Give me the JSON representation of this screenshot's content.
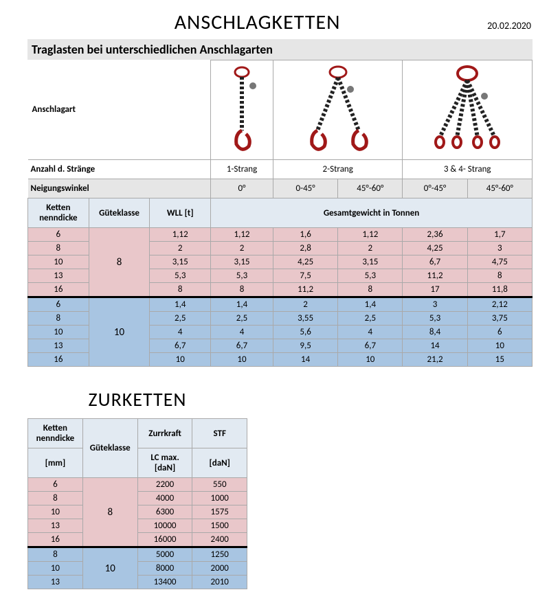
{
  "header": {
    "title": "ANSCHLAGKETTEN",
    "date": "20.02.2020",
    "banner": "Traglasten bei unterschiedlichen Anschlagarten"
  },
  "labels": {
    "anschlagart": "Anschlagart",
    "anzahl": "Anzahl d. Stränge",
    "neigung": "Neigungswinkel",
    "ketten": "Ketten nenndicke",
    "gk": "Güteklasse",
    "wll": "WLL [t]",
    "gesamt": "Gesamtgewicht in Tonnen",
    "strang1": "1-Strang",
    "strang2": "2-Strang",
    "strang34": "3 & 4- Strang",
    "a0": "0°",
    "a045": "0-45°",
    "a4560": "45°-60°",
    "a0d45": "0°-45°"
  },
  "table1": {
    "colors": {
      "pink": "#e9c7ca",
      "blue": "#a8c5e2",
      "header": "#e2eaf2",
      "grey": "#e6e6e6",
      "border": "#a9a9a9"
    },
    "group8": {
      "gk": "8",
      "rows": [
        {
          "d": "6",
          "v": [
            "1,12",
            "1,12",
            "1,6",
            "1,12",
            "2,36",
            "1,7"
          ]
        },
        {
          "d": "8",
          "v": [
            "2",
            "2",
            "2,8",
            "2",
            "4,25",
            "3"
          ]
        },
        {
          "d": "10",
          "v": [
            "3,15",
            "3,15",
            "4,25",
            "3,15",
            "6,7",
            "4,75"
          ]
        },
        {
          "d": "13",
          "v": [
            "5,3",
            "5,3",
            "7,5",
            "5,3",
            "11,2",
            "8"
          ]
        },
        {
          "d": "16",
          "v": [
            "8",
            "8",
            "11,2",
            "8",
            "17",
            "11,8"
          ]
        }
      ]
    },
    "group10": {
      "gk": "10",
      "rows": [
        {
          "d": "6",
          "v": [
            "1,4",
            "1,4",
            "2",
            "1,4",
            "3",
            "2,12"
          ]
        },
        {
          "d": "8",
          "v": [
            "2,5",
            "2,5",
            "3,55",
            "2,5",
            "5,3",
            "3,75"
          ]
        },
        {
          "d": "10",
          "v": [
            "4",
            "4",
            "5,6",
            "4",
            "8,4",
            "6"
          ]
        },
        {
          "d": "13",
          "v": [
            "6,7",
            "6,7",
            "9,5",
            "6,7",
            "14",
            "10"
          ]
        },
        {
          "d": "16",
          "v": [
            "10",
            "10",
            "14",
            "10",
            "21,2",
            "15"
          ]
        }
      ]
    }
  },
  "section2": {
    "title": "ZURKETTEN",
    "labels": {
      "ketten": "Ketten nenndicke",
      "mm": "[mm]",
      "gk": "Güteklasse",
      "zurr": "Zurrkraft",
      "lc": "LC max. [daN]",
      "stf": "STF",
      "dan": "[daN]"
    },
    "group8": {
      "gk": "8",
      "rows": [
        {
          "d": "6",
          "lc": "2200",
          "stf": "550"
        },
        {
          "d": "8",
          "lc": "4000",
          "stf": "1000"
        },
        {
          "d": "10",
          "lc": "6300",
          "stf": "1575"
        },
        {
          "d": "13",
          "lc": "10000",
          "stf": "1500"
        },
        {
          "d": "16",
          "lc": "16000",
          "stf": "2400"
        }
      ]
    },
    "group10": {
      "gk": "10",
      "rows": [
        {
          "d": "8",
          "lc": "5000",
          "stf": "1250"
        },
        {
          "d": "10",
          "lc": "8000",
          "stf": "2000"
        },
        {
          "d": "13",
          "lc": "13400",
          "stf": "2010"
        }
      ]
    }
  }
}
